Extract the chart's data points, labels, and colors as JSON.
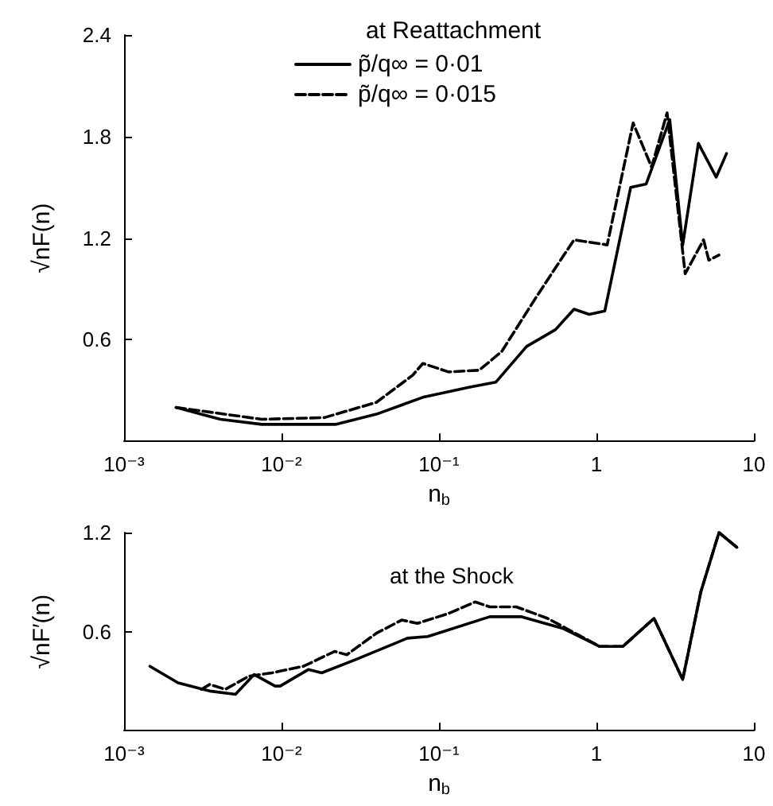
{
  "chart_data": [
    {
      "type": "line",
      "legend_title": "at Reattachment",
      "xlabel": "n$_{b}$",
      "ylabel": "√nF(n)",
      "log": "x",
      "grid": false,
      "legend": "top",
      "marker": "none",
      "xlim": [
        0.001,
        10
      ],
      "xticks": [
        {
          "value": 0.001,
          "label": "10⁻³"
        },
        {
          "value": 0.01,
          "label": "10⁻²"
        },
        {
          "value": 0.1,
          "label": "10⁻¹"
        },
        {
          "value": 1,
          "label": "1"
        },
        {
          "value": 10,
          "label": "10"
        }
      ],
      "ylim": [
        0,
        2.4
      ],
      "yticks": [
        0.6,
        1.2,
        1.8,
        2.4
      ],
      "series": [
        {
          "name": "p̃/q∞ = 0·01",
          "color": "#000000",
          "line_style": "solid",
          "x": [
            0.00214,
            0.0041,
            0.0075,
            0.022,
            0.04,
            0.079,
            0.157,
            0.23,
            0.36,
            0.55,
            0.72,
            0.9,
            1.13,
            1.65,
            2.07,
            2.92,
            3.53,
            4.44,
            5.76,
            6.7
          ],
          "values": [
            0.2,
            0.13,
            0.1,
            0.1,
            0.16,
            0.26,
            0.32,
            0.35,
            0.56,
            0.66,
            0.78,
            0.75,
            0.77,
            1.5,
            1.52,
            1.9,
            1.16,
            1.76,
            1.56,
            1.7
          ]
        },
        {
          "name": "p̃/q∞ = 0·015",
          "color": "#000000",
          "line_style": "dashed",
          "x": [
            0.00214,
            0.0075,
            0.0187,
            0.04,
            0.068,
            0.079,
            0.115,
            0.18,
            0.25,
            0.42,
            0.72,
            1.17,
            1.71,
            2.24,
            2.81,
            3.66,
            4.79,
            5.17,
            6.0
          ],
          "values": [
            0.2,
            0.13,
            0.14,
            0.23,
            0.39,
            0.46,
            0.41,
            0.42,
            0.53,
            0.86,
            1.19,
            1.16,
            1.88,
            1.62,
            1.94,
            0.99,
            1.19,
            1.07,
            1.1
          ]
        }
      ]
    },
    {
      "type": "line",
      "annotations": [
        "at the Shock"
      ],
      "xlabel": "n$_{b}$",
      "ylabel": "√nF′(n)",
      "log": "x",
      "grid": false,
      "legend": false,
      "marker": "none",
      "xlim": [
        0.001,
        10
      ],
      "xticks": [
        {
          "value": 0.001,
          "label": "10⁻³"
        },
        {
          "value": 0.01,
          "label": "10⁻²"
        },
        {
          "value": 0.1,
          "label": "10⁻¹"
        },
        {
          "value": 1,
          "label": "1"
        },
        {
          "value": 10,
          "label": "10"
        }
      ],
      "ylim": [
        0,
        1.2
      ],
      "yticks": [
        0.6,
        1.2
      ],
      "series": [
        {
          "color": "#000000",
          "line_style": "solid",
          "x": [
            0.00146,
            0.0022,
            0.0035,
            0.0051,
            0.0067,
            0.0091,
            0.0098,
            0.0148,
            0.018,
            0.0295,
            0.063,
            0.085,
            0.21,
            0.335,
            0.61,
            1.05,
            1.47,
            2.32,
            3.53,
            4.6,
            6.0,
            7.8
          ],
          "values": [
            0.39,
            0.29,
            0.24,
            0.22,
            0.34,
            0.27,
            0.27,
            0.37,
            0.35,
            0.43,
            0.56,
            0.57,
            0.69,
            0.69,
            0.62,
            0.51,
            0.51,
            0.68,
            0.31,
            0.84,
            1.2,
            1.11
          ]
        },
        {
          "color": "#000000",
          "line_style": "dashed",
          "x": [
            0.0031,
            0.0035,
            0.0044,
            0.0062,
            0.0087,
            0.0138,
            0.0217,
            0.026,
            0.04,
            0.058,
            0.073,
            0.115,
            0.17,
            0.21,
            0.31,
            0.49,
            1.05,
            1.47,
            2.32,
            3.53,
            4.6,
            6.0,
            7.8
          ],
          "values": [
            0.25,
            0.28,
            0.25,
            0.33,
            0.35,
            0.39,
            0.48,
            0.46,
            0.59,
            0.67,
            0.65,
            0.71,
            0.78,
            0.75,
            0.75,
            0.68,
            0.51,
            0.51,
            0.68,
            0.31,
            0.84,
            1.2,
            1.11
          ]
        }
      ]
    }
  ]
}
